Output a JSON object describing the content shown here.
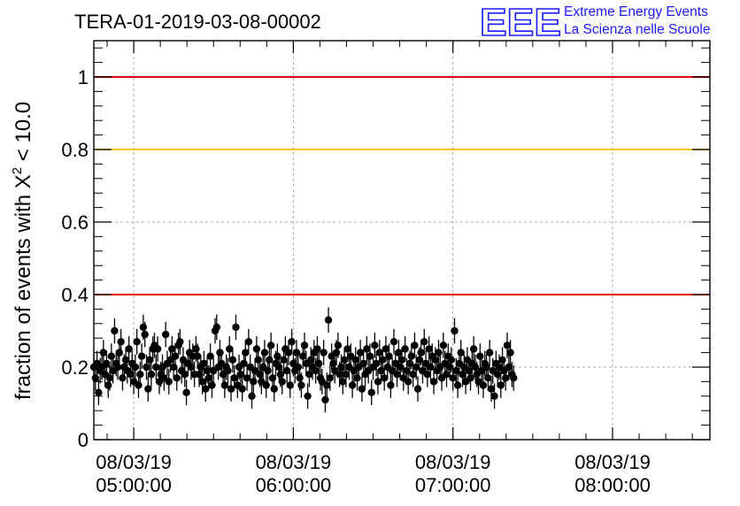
{
  "colors": {
    "red_threshold": "#e8000b",
    "yellow_threshold": "#ffc000",
    "logo_blue": "#1a1aff",
    "markers": "#000000",
    "grid": "#aaaaaa"
  },
  "logo": {
    "mark": "EEE",
    "line1": "Extreme Energy Events",
    "line2": "La Scienza nelle Scuole"
  },
  "chart_data": {
    "type": "scatter",
    "title": "TERA-01-2019-03-08-00002",
    "ylabel_prefix": "fraction of events with X",
    "ylabel_sup": "2",
    "ylabel_suffix": " < 10.0",
    "ylim": [
      0,
      1.1
    ],
    "xlim_hours": [
      4.75,
      8.61
    ],
    "grid": true,
    "yticks": [
      {
        "value": 0,
        "label": "0"
      },
      {
        "value": 0.2,
        "label": "0.2"
      },
      {
        "value": 0.4,
        "label": "0.4"
      },
      {
        "value": 0.6,
        "label": "0.6"
      },
      {
        "value": 0.8,
        "label": "0.8"
      },
      {
        "value": 1.0,
        "label": "1"
      }
    ],
    "xticks": [
      {
        "hour": 5,
        "date": "08/03/19",
        "time": "05:00:00"
      },
      {
        "hour": 6,
        "date": "08/03/19",
        "time": "06:00:00"
      },
      {
        "hour": 7,
        "date": "08/03/19",
        "time": "07:00:00"
      },
      {
        "hour": 8,
        "date": "08/03/19",
        "time": "08:00:00"
      }
    ],
    "thresholds": [
      {
        "value": 1.0,
        "color": "#e8000b"
      },
      {
        "value": 0.8,
        "color": "#ffc000"
      },
      {
        "value": 0.4,
        "color": "#e8000b"
      }
    ],
    "error": 0.035,
    "x_start_hour": 4.75,
    "x_step_hours": 0.01,
    "values": [
      0.2,
      0.17,
      0.21,
      0.13,
      0.19,
      0.2,
      0.24,
      0.18,
      0.21,
      0.15,
      0.17,
      0.23,
      0.19,
      0.3,
      0.21,
      0.2,
      0.24,
      0.27,
      0.17,
      0.2,
      0.22,
      0.19,
      0.25,
      0.18,
      0.21,
      0.16,
      0.2,
      0.27,
      0.15,
      0.18,
      0.23,
      0.31,
      0.29,
      0.2,
      0.14,
      0.22,
      0.18,
      0.25,
      0.26,
      0.2,
      0.25,
      0.16,
      0.18,
      0.2,
      0.17,
      0.29,
      0.21,
      0.16,
      0.22,
      0.25,
      0.2,
      0.23,
      0.17,
      0.26,
      0.27,
      0.19,
      0.22,
      0.18,
      0.13,
      0.21,
      0.24,
      0.2,
      0.23,
      0.18,
      0.25,
      0.23,
      0.18,
      0.2,
      0.16,
      0.21,
      0.14,
      0.19,
      0.17,
      0.23,
      0.15,
      0.19,
      0.3,
      0.31,
      0.2,
      0.24,
      0.21,
      0.18,
      0.15,
      0.2,
      0.19,
      0.25,
      0.14,
      0.22,
      0.17,
      0.31,
      0.15,
      0.2,
      0.18,
      0.14,
      0.21,
      0.24,
      0.17,
      0.27,
      0.2,
      0.12,
      0.16,
      0.19,
      0.25,
      0.22,
      0.18,
      0.16,
      0.2,
      0.24,
      0.15,
      0.19,
      0.22,
      0.26,
      0.17,
      0.14,
      0.21,
      0.23,
      0.2,
      0.18,
      0.16,
      0.22,
      0.25,
      0.19,
      0.24,
      0.15,
      0.27,
      0.21,
      0.19,
      0.24,
      0.2,
      0.17,
      0.15,
      0.23,
      0.26,
      0.21,
      0.12,
      0.18,
      0.22,
      0.2,
      0.24,
      0.19,
      0.25,
      0.21,
      0.17,
      0.16,
      0.24,
      0.11,
      0.15,
      0.33,
      0.17,
      0.23,
      0.21,
      0.19,
      0.24,
      0.26,
      0.18,
      0.2,
      0.16,
      0.22,
      0.18,
      0.25,
      0.2,
      0.23,
      0.15,
      0.19,
      0.22,
      0.17,
      0.2,
      0.24,
      0.14,
      0.21,
      0.18,
      0.25,
      0.19,
      0.23,
      0.13,
      0.2,
      0.26,
      0.21,
      0.16,
      0.24,
      0.19,
      0.22,
      0.17,
      0.25,
      0.2,
      0.23,
      0.15,
      0.19,
      0.27,
      0.21,
      0.18,
      0.24,
      0.2,
      0.22,
      0.17,
      0.25,
      0.19,
      0.16,
      0.21,
      0.23,
      0.18,
      0.26,
      0.2,
      0.14,
      0.22,
      0.24,
      0.19,
      0.27,
      0.21,
      0.18,
      0.25,
      0.2,
      0.23,
      0.16,
      0.22,
      0.19,
      0.24,
      0.2,
      0.17,
      0.26,
      0.21,
      0.18,
      0.23,
      0.2,
      0.22,
      0.17,
      0.3,
      0.19,
      0.15,
      0.21,
      0.24,
      0.18,
      0.2,
      0.16,
      0.22,
      0.19,
      0.17,
      0.21,
      0.25,
      0.2,
      0.18,
      0.16,
      0.23,
      0.19,
      0.15,
      0.21,
      0.2,
      0.17,
      0.24,
      0.14,
      0.19,
      0.12,
      0.21,
      0.18,
      0.2,
      0.15,
      0.22,
      0.19,
      0.17,
      0.26,
      0.2,
      0.24,
      0.18,
      0.17
    ]
  }
}
